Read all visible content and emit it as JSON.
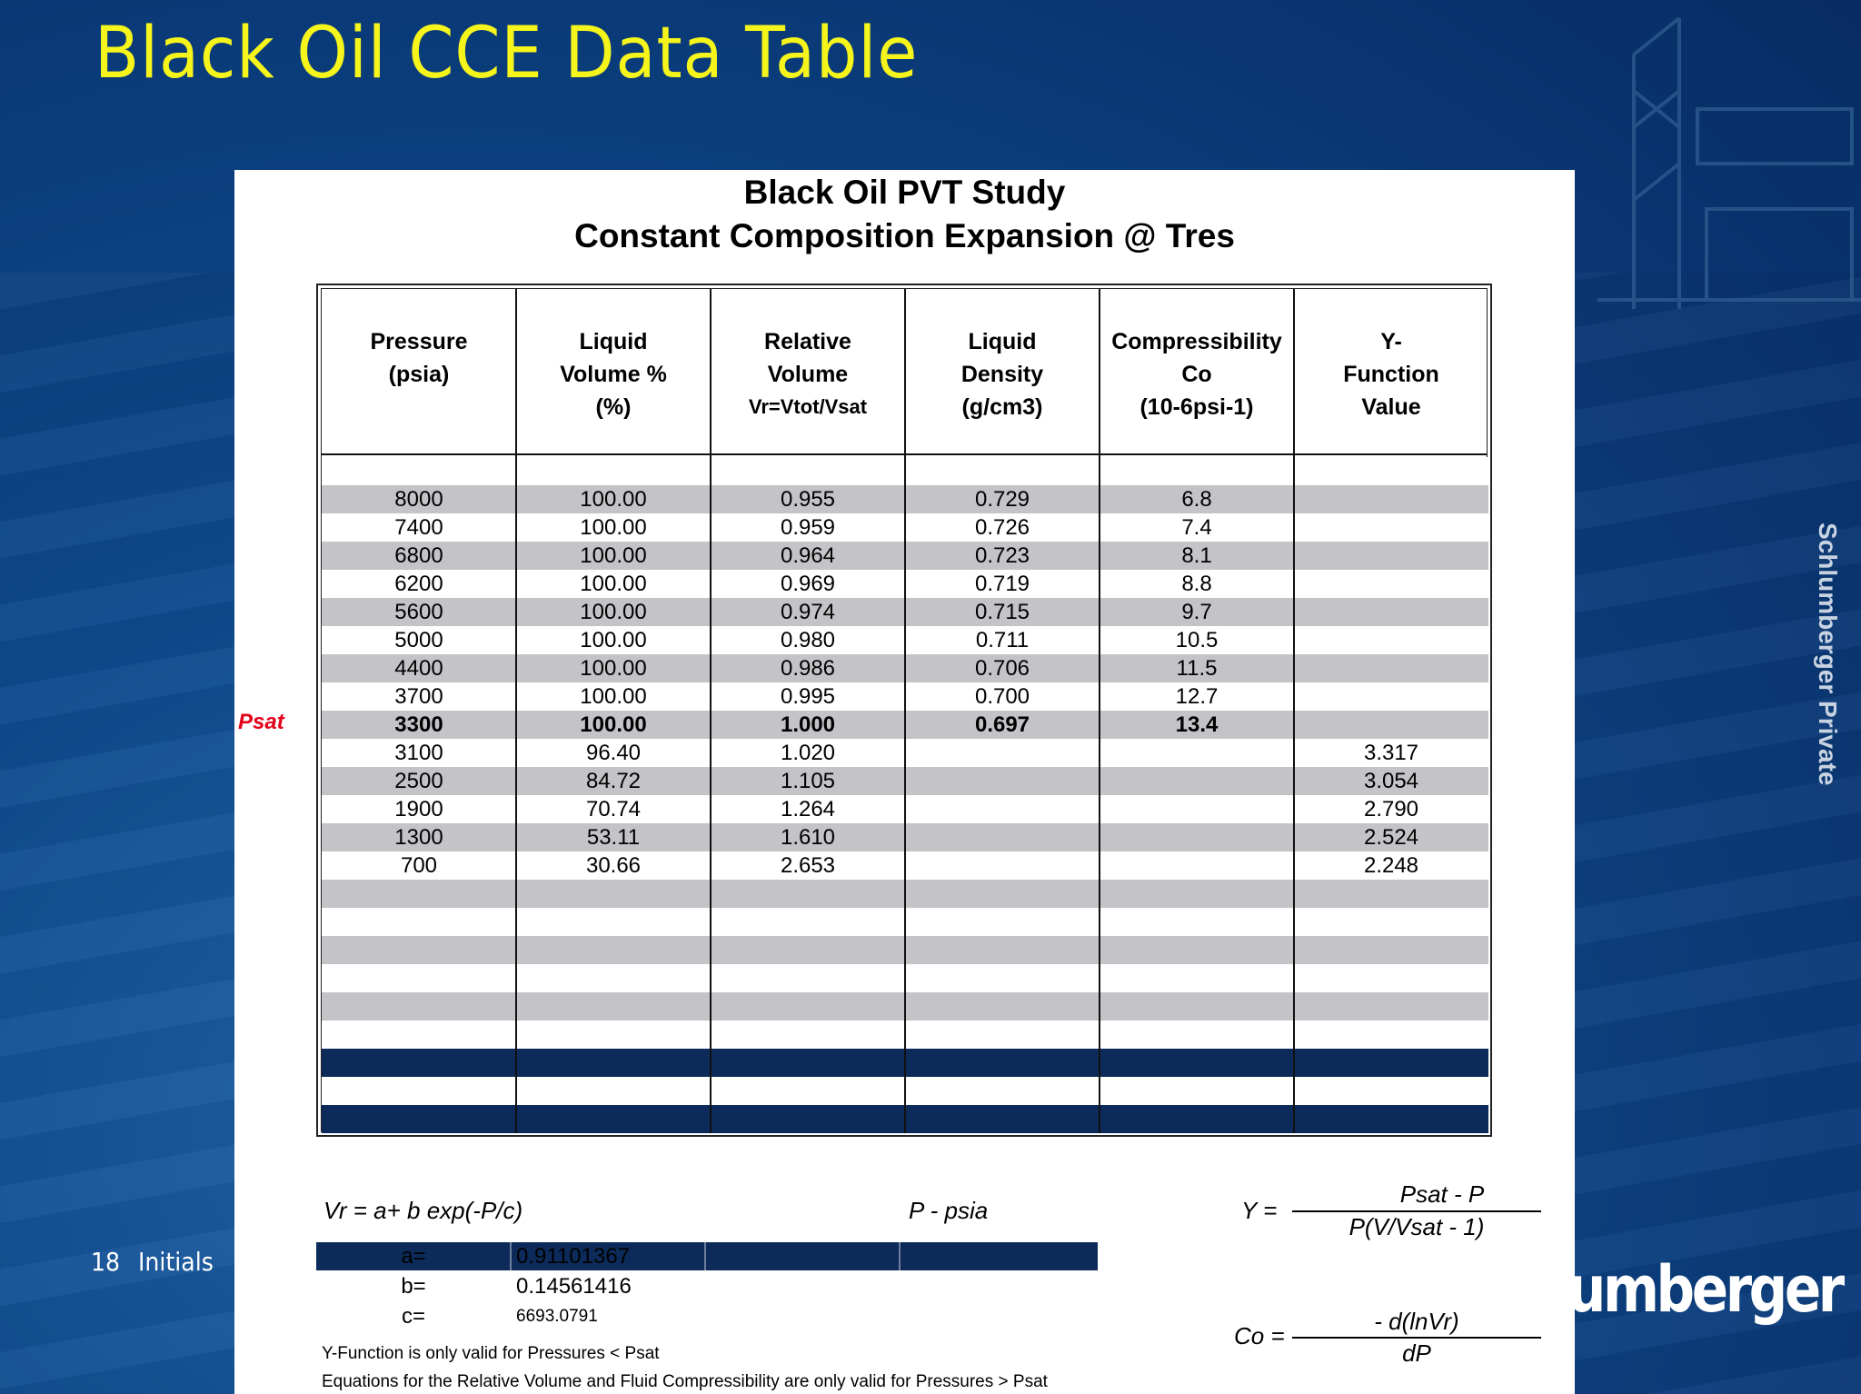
{
  "slide": {
    "title": "Black Oil CCE Data Table",
    "page_number": "18",
    "footer_initials": "Initials",
    "side_label": "Schlumberger Private",
    "logo_fragment": "umberger"
  },
  "panel": {
    "title_line1": "Black Oil PVT Study",
    "title_line2": "Constant Composition Expansion @ Tres",
    "psat_marker": "Psat"
  },
  "table": {
    "headers": [
      {
        "l1": "Pressure",
        "l2": "(psia)",
        "l3": ""
      },
      {
        "l1": "Liquid",
        "l2": "Volume %",
        "l3": "(%)"
      },
      {
        "l1": "Relative",
        "l2": "Volume",
        "l3": "Vr=Vtot/Vsat"
      },
      {
        "l1": "Liquid",
        "l2": "Density",
        "l3": "(g/cm3)"
      },
      {
        "l1": "Compressibility",
        "l2": "Co",
        "l3": "(10-6psi-1)"
      },
      {
        "l1": "Y-",
        "l2": "Function",
        "l3": "Value"
      }
    ],
    "rows": [
      [
        "8000",
        "100.00",
        "0.955",
        "0.729",
        "6.8",
        ""
      ],
      [
        "7400",
        "100.00",
        "0.959",
        "0.726",
        "7.4",
        ""
      ],
      [
        "6800",
        "100.00",
        "0.964",
        "0.723",
        "8.1",
        ""
      ],
      [
        "6200",
        "100.00",
        "0.969",
        "0.719",
        "8.8",
        ""
      ],
      [
        "5600",
        "100.00",
        "0.974",
        "0.715",
        "9.7",
        ""
      ],
      [
        "5000",
        "100.00",
        "0.980",
        "0.711",
        "10.5",
        ""
      ],
      [
        "4400",
        "100.00",
        "0.986",
        "0.706",
        "11.5",
        ""
      ],
      [
        "3700",
        "100.00",
        "0.995",
        "0.700",
        "12.7",
        ""
      ],
      [
        "3300",
        "100.00",
        "1.000",
        "0.697",
        "13.4",
        ""
      ],
      [
        "3100",
        "96.40",
        "1.020",
        "",
        "",
        "3.317"
      ],
      [
        "2500",
        "84.72",
        "1.105",
        "",
        "",
        "3.054"
      ],
      [
        "1900",
        "70.74",
        "1.264",
        "",
        "",
        "2.790"
      ],
      [
        "1300",
        "53.11",
        "1.610",
        "",
        "",
        "2.524"
      ],
      [
        "700",
        "30.66",
        "2.653",
        "",
        "",
        "2.248"
      ]
    ],
    "bold_row_index": 8
  },
  "equations": {
    "vr_eq": "Vr = a+ b exp(-P/c)",
    "p_units": "P - psia",
    "y_lhs": "Y =",
    "y_num": "Psat - P",
    "y_den": "P(V/Vsat - 1)",
    "co_lhs": "Co =",
    "co_num": "- d(lnVr)",
    "co_den": "dP"
  },
  "coefficients": {
    "a_label": "a=",
    "a_value": "0.91101367",
    "b_label": "b=",
    "b_value": "0.14561416",
    "c_label": "c=",
    "c_value": "6693.0791"
  },
  "notes": {
    "n1": "Y-Function is only valid for Pressures < Psat",
    "n2": "Equations for the Relative Volume and Fluid Compressibility are only valid for Pressures > Psat"
  },
  "colors": {
    "title_yellow": "#f5f51c",
    "psat_red": "#e2001a",
    "navy": "#0c2b5a",
    "stripe_gray": "#c4c4c8"
  }
}
